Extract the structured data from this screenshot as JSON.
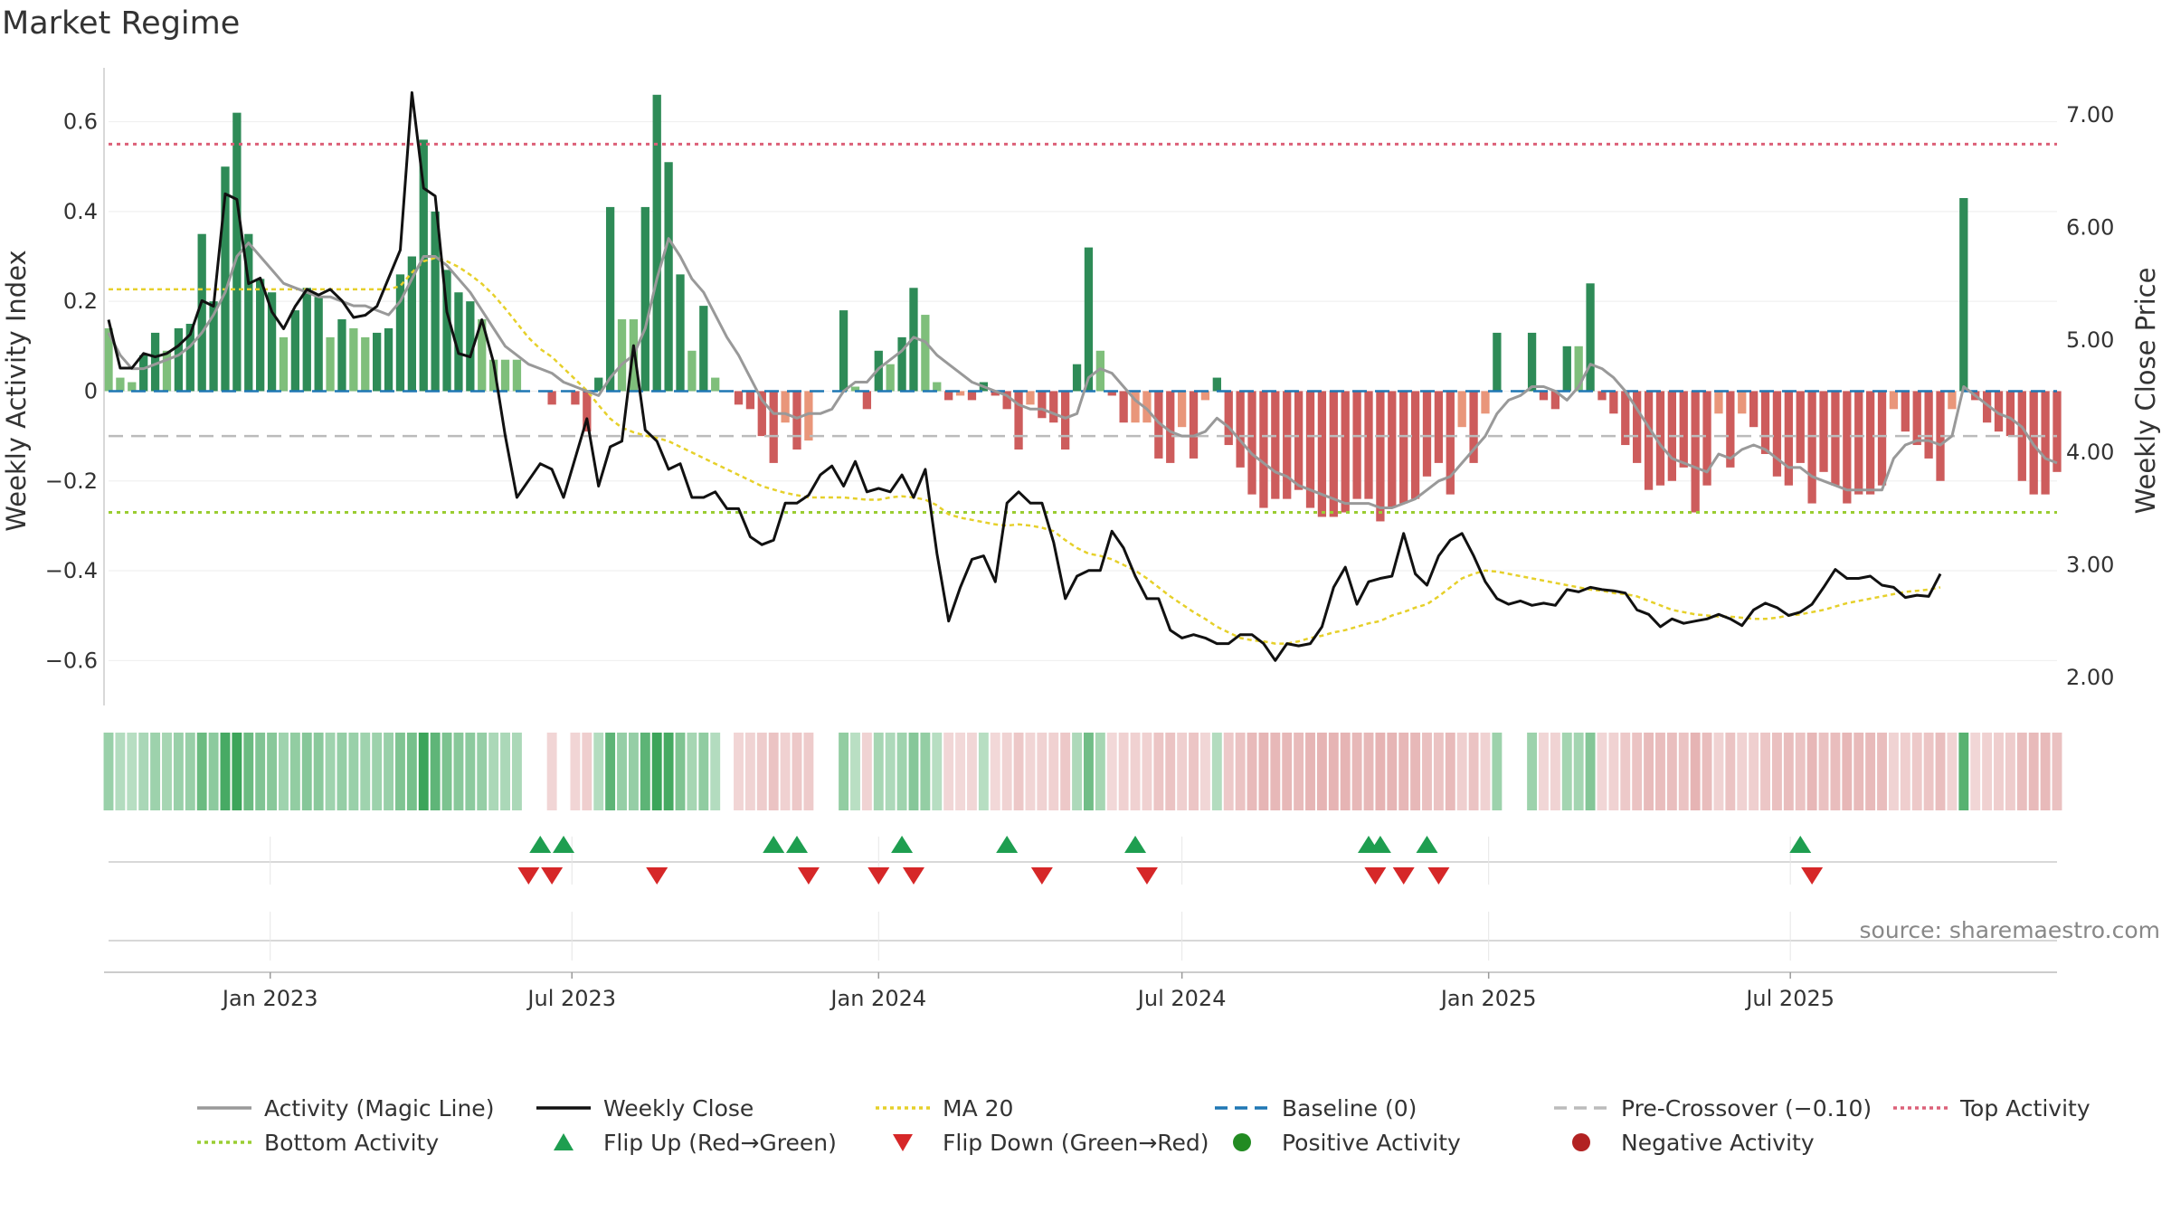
{
  "title": "Market Regime",
  "chart_data": {
    "type": "bar",
    "title": "Market Regime",
    "ylabel_left": "Weekly Activity Index",
    "ylabel_right": "Weekly Close Price",
    "ylim_left": [
      -0.7,
      0.72
    ],
    "ylim_right": [
      1.75,
      7.42
    ],
    "yticks_left": [
      {
        "value": 0.6,
        "label": "0.6"
      },
      {
        "value": 0.4,
        "label": "0.4"
      },
      {
        "value": 0.2,
        "label": "0.2"
      },
      {
        "value": 0,
        "label": "0"
      },
      {
        "value": -0.2,
        "label": "−0.2"
      },
      {
        "value": -0.4,
        "label": "−0.4"
      },
      {
        "value": -0.6,
        "label": "−0.6"
      }
    ],
    "yticks_right": [
      {
        "value": 7.0,
        "label": "7.00"
      },
      {
        "value": 6.0,
        "label": "6.00"
      },
      {
        "value": 5.0,
        "label": "5.00"
      },
      {
        "value": 4.0,
        "label": "4.00"
      },
      {
        "value": 3.0,
        "label": "3.00"
      },
      {
        "value": 2.0,
        "label": "2.00"
      }
    ],
    "x_start": "2022-09-26",
    "x_interval": "weekly",
    "xticks": [
      {
        "date": "2023-01-01",
        "label": "Jan 2023"
      },
      {
        "date": "2023-07-01",
        "label": "Jul 2023"
      },
      {
        "date": "2024-01-01",
        "label": "Jan 2024"
      },
      {
        "date": "2024-07-01",
        "label": "Jul 2024"
      },
      {
        "date": "2025-01-01",
        "label": "Jan 2025"
      },
      {
        "date": "2025-07-01",
        "label": "Jul 2025"
      }
    ],
    "reference_lines": {
      "baseline": 0,
      "pre_crossover": -0.1,
      "top_activity": 0.55,
      "bottom_activity": -0.27
    },
    "activity": [
      0.14,
      0.03,
      0.02,
      0.08,
      0.13,
      0.09,
      0.14,
      0.15,
      0.35,
      0.2,
      0.5,
      0.62,
      0.35,
      0.25,
      0.22,
      0.12,
      0.18,
      0.23,
      0.21,
      0.12,
      0.16,
      0.14,
      0.12,
      0.13,
      0.14,
      0.26,
      0.3,
      0.56,
      0.4,
      0.27,
      0.22,
      0.2,
      0.16,
      0.07,
      0.07,
      0.07,
      0,
      0,
      -0.03,
      0,
      -0.03,
      -0.09,
      0.03,
      0.41,
      0.16,
      0.16,
      0.41,
      0.66,
      0.51,
      0.26,
      0.09,
      0.19,
      0.03,
      0,
      -0.03,
      -0.04,
      -0.1,
      -0.16,
      -0.07,
      -0.13,
      -0.11,
      0,
      0,
      0.18,
      0.01,
      -0.04,
      0.09,
      0.06,
      0.12,
      0.23,
      0.17,
      0.02,
      -0.02,
      -0.01,
      -0.02,
      0.02,
      -0.01,
      -0.04,
      -0.13,
      -0.03,
      -0.06,
      -0.07,
      -0.13,
      0.06,
      0.32,
      0.09,
      -0.01,
      -0.07,
      -0.07,
      -0.07,
      -0.15,
      -0.16,
      -0.08,
      -0.15,
      -0.02,
      0.03,
      -0.12,
      -0.17,
      -0.23,
      -0.26,
      -0.24,
      -0.24,
      -0.22,
      -0.26,
      -0.28,
      -0.28,
      -0.27,
      -0.24,
      -0.24,
      -0.29,
      -0.26,
      -0.25,
      -0.24,
      -0.19,
      -0.16,
      -0.23,
      -0.08,
      -0.16,
      -0.05,
      0.13,
      0,
      0,
      0.13,
      -0.02,
      -0.04,
      0.1,
      0.1,
      0.24,
      -0.02,
      -0.05,
      -0.12,
      -0.16,
      -0.22,
      -0.21,
      -0.2,
      -0.17,
      -0.27,
      -0.21,
      -0.05,
      -0.17,
      -0.05,
      -0.08,
      -0.14,
      -0.19,
      -0.21,
      -0.16,
      -0.25,
      -0.18,
      -0.21,
      -0.25,
      -0.23,
      -0.23,
      -0.21,
      -0.04,
      -0.09,
      -0.12,
      -0.15,
      -0.2,
      -0.04,
      0.43,
      -0.02,
      -0.07,
      -0.09,
      -0.1,
      -0.2,
      -0.23,
      -0.23,
      -0.18
    ],
    "magic_line": [
      0.13,
      0.08,
      0.05,
      0.05,
      0.06,
      0.07,
      0.08,
      0.1,
      0.13,
      0.17,
      0.22,
      0.3,
      0.33,
      0.3,
      0.27,
      0.24,
      0.23,
      0.22,
      0.21,
      0.21,
      0.2,
      0.19,
      0.19,
      0.18,
      0.17,
      0.2,
      0.25,
      0.3,
      0.3,
      0.28,
      0.25,
      0.22,
      0.18,
      0.14,
      0.1,
      0.08,
      0.06,
      0.05,
      0.04,
      0.02,
      0.01,
      0,
      -0.01,
      0.03,
      0.06,
      0.08,
      0.14,
      0.25,
      0.34,
      0.3,
      0.25,
      0.22,
      0.17,
      0.12,
      0.08,
      0.03,
      -0.02,
      -0.05,
      -0.05,
      -0.06,
      -0.05,
      -0.05,
      -0.04,
      0,
      0.02,
      0.02,
      0.05,
      0.07,
      0.09,
      0.12,
      0.11,
      0.08,
      0.06,
      0.04,
      0.02,
      0.01,
      0,
      -0.01,
      -0.03,
      -0.04,
      -0.04,
      -0.05,
      -0.06,
      -0.05,
      0.03,
      0.05,
      0.04,
      0.01,
      -0.02,
      -0.04,
      -0.07,
      -0.09,
      -0.1,
      -0.1,
      -0.09,
      -0.06,
      -0.08,
      -0.11,
      -0.14,
      -0.16,
      -0.18,
      -0.19,
      -0.21,
      -0.22,
      -0.23,
      -0.24,
      -0.25,
      -0.25,
      -0.25,
      -0.26,
      -0.26,
      -0.25,
      -0.24,
      -0.22,
      -0.2,
      -0.19,
      -0.16,
      -0.13,
      -0.1,
      -0.05,
      -0.02,
      -0.01,
      0.01,
      0.01,
      0,
      -0.02,
      0.01,
      0.06,
      0.05,
      0.03,
      0,
      -0.04,
      -0.08,
      -0.12,
      -0.15,
      -0.16,
      -0.17,
      -0.18,
      -0.14,
      -0.15,
      -0.13,
      -0.12,
      -0.13,
      -0.15,
      -0.17,
      -0.17,
      -0.19,
      -0.2,
      -0.21,
      -0.22,
      -0.22,
      -0.22,
      -0.22,
      -0.15,
      -0.12,
      -0.11,
      -0.11,
      -0.12,
      -0.1,
      0.01,
      -0.01,
      -0.03,
      -0.05,
      -0.06,
      -0.08,
      -0.12,
      -0.15,
      -0.16
    ],
    "weekly_close": [
      5.18,
      4.75,
      4.75,
      4.88,
      4.85,
      4.88,
      4.95,
      5.05,
      5.35,
      5.3,
      6.3,
      6.25,
      5.5,
      5.55,
      5.25,
      5.1,
      5.3,
      5.45,
      5.4,
      5.45,
      5.35,
      5.2,
      5.22,
      5.3,
      5.55,
      5.8,
      7.2,
      6.35,
      6.28,
      5.25,
      4.88,
      4.85,
      5.18,
      4.8,
      4.15,
      3.6,
      3.75,
      3.9,
      3.85,
      3.6,
      3.95,
      4.3,
      3.7,
      4.05,
      4.1,
      4.95,
      4.2,
      4.1,
      3.85,
      3.9,
      3.6,
      3.6,
      3.65,
      3.5,
      3.5,
      3.25,
      3.18,
      3.22,
      3.55,
      3.55,
      3.62,
      3.8,
      3.88,
      3.7,
      3.92,
      3.65,
      3.68,
      3.65,
      3.8,
      3.6,
      3.85,
      3.1,
      2.5,
      2.8,
      3.05,
      3.08,
      2.85,
      3.55,
      3.65,
      3.55,
      3.55,
      3.2,
      2.7,
      2.9,
      2.95,
      2.95,
      3.3,
      3.15,
      2.9,
      2.7,
      2.7,
      2.42,
      2.35,
      2.38,
      2.35,
      2.3,
      2.3,
      2.38,
      2.38,
      2.3,
      2.15,
      2.3,
      2.28,
      2.3,
      2.45,
      2.8,
      2.98,
      2.65,
      2.85,
      2.88,
      2.9,
      3.28,
      2.92,
      2.82,
      3.08,
      3.22,
      3.28,
      3.08,
      2.85,
      2.7,
      2.65,
      2.68,
      2.64,
      2.66,
      2.64,
      2.78,
      2.76,
      2.8,
      2.78,
      2.77,
      2.75,
      2.6,
      2.56,
      2.45,
      2.52,
      2.48,
      2.5,
      2.52,
      2.56,
      2.52,
      2.46,
      2.6,
      2.66,
      2.62,
      2.55,
      2.58,
      2.65,
      2.8,
      2.96,
      2.88,
      2.88,
      2.9,
      2.82,
      2.8,
      2.71,
      2.73,
      2.72,
      2.92
    ],
    "ma20": [
      5.45,
      5.45,
      5.45,
      5.45,
      5.45,
      5.45,
      5.45,
      5.45,
      5.45,
      5.45,
      5.45,
      5.45,
      5.45,
      5.45,
      5.45,
      5.45,
      5.45,
      5.45,
      5.45,
      5.45,
      5.45,
      5.45,
      5.45,
      5.45,
      5.45,
      5.48,
      5.6,
      5.7,
      5.73,
      5.7,
      5.65,
      5.58,
      5.5,
      5.4,
      5.28,
      5.15,
      5.02,
      4.92,
      4.85,
      4.75,
      4.65,
      4.55,
      4.42,
      4.3,
      4.22,
      4.18,
      4.15,
      4.13,
      4.1,
      4.05,
      4.0,
      3.95,
      3.9,
      3.85,
      3.8,
      3.75,
      3.7,
      3.67,
      3.64,
      3.62,
      3.6,
      3.6,
      3.6,
      3.6,
      3.59,
      3.58,
      3.58,
      3.6,
      3.61,
      3.6,
      3.58,
      3.53,
      3.45,
      3.42,
      3.4,
      3.38,
      3.36,
      3.35,
      3.36,
      3.35,
      3.33,
      3.3,
      3.22,
      3.15,
      3.1,
      3.08,
      3.05,
      3.0,
      2.95,
      2.88,
      2.8,
      2.72,
      2.65,
      2.58,
      2.52,
      2.45,
      2.4,
      2.35,
      2.33,
      2.32,
      2.3,
      2.3,
      2.32,
      2.35,
      2.37,
      2.4,
      2.42,
      2.45,
      2.48,
      2.5,
      2.55,
      2.58,
      2.62,
      2.65,
      2.72,
      2.8,
      2.88,
      2.92,
      2.95,
      2.94,
      2.92,
      2.9,
      2.88,
      2.86,
      2.84,
      2.82,
      2.8,
      2.78,
      2.77,
      2.75,
      2.74,
      2.72,
      2.68,
      2.64,
      2.6,
      2.58,
      2.56,
      2.55,
      2.54,
      2.54,
      2.53,
      2.52,
      2.52,
      2.53,
      2.55,
      2.56,
      2.58,
      2.6,
      2.63,
      2.66,
      2.68,
      2.7,
      2.72,
      2.74,
      2.76,
      2.77,
      2.78,
      2.8
    ],
    "flip_up": [
      "2023-06-12",
      "2023-06-26",
      "2023-10-30",
      "2023-11-13",
      "2024-01-15",
      "2024-03-18",
      "2024-06-03",
      "2024-10-21",
      "2024-10-28",
      "2024-11-25",
      "2025-07-07"
    ],
    "flip_down": [
      "2023-06-05",
      "2023-06-19",
      "2023-08-21",
      "2023-11-20",
      "2024-01-01",
      "2024-01-22",
      "2024-04-08",
      "2024-06-10",
      "2024-10-25",
      "2024-11-11",
      "2024-12-02",
      "2025-07-14"
    ],
    "colors": {
      "pos_strong": "#2e8b57",
      "pos_weak": "#7fbf7b",
      "neg_strong": "#cd5c5c",
      "neg_weak": "#e9967a",
      "magic_line": "#999999",
      "weekly_close": "#111111",
      "ma20": "#e6d02a",
      "baseline": "#1f77b4",
      "pre_crossover": "#bbbbbb",
      "top_activity": "#dc6078",
      "bottom_activity": "#9acd32",
      "flip_up": "#1e9e50",
      "flip_down": "#d62728",
      "positive_activity": "#228b22",
      "negative_activity": "#b22222"
    },
    "legend_position": "bottom",
    "legend": [
      {
        "label": "Activity (Magic Line)",
        "kind": "line",
        "color": "#999999",
        "dash": ""
      },
      {
        "label": "Weekly Close",
        "kind": "line",
        "color": "#111111",
        "dash": ""
      },
      {
        "label": "MA 20",
        "kind": "line",
        "color": "#e6d02a",
        "dash": "4,4"
      },
      {
        "label": "Baseline (0)",
        "kind": "line",
        "color": "#1f77b4",
        "dash": "14,8"
      },
      {
        "label": "Pre-Crossover (−0.10)",
        "kind": "line",
        "color": "#bbbbbb",
        "dash": "14,8"
      },
      {
        "label": "Top Activity",
        "kind": "line",
        "color": "#dc6078",
        "dash": "4,4"
      },
      {
        "label": "Bottom Activity",
        "kind": "line",
        "color": "#9acd32",
        "dash": "4,4"
      },
      {
        "label": "Flip Up (Red→Green)",
        "kind": "triangle-up",
        "color": "#1e9e50",
        "dash": ""
      },
      {
        "label": "Flip Down (Green→Red)",
        "kind": "triangle-down",
        "color": "#d62728",
        "dash": ""
      },
      {
        "label": "Positive Activity",
        "kind": "dot",
        "color": "#228b22",
        "dash": ""
      },
      {
        "label": "Negative Activity",
        "kind": "dot",
        "color": "#b22222",
        "dash": ""
      }
    ],
    "source": "source: sharemaestro.com"
  }
}
